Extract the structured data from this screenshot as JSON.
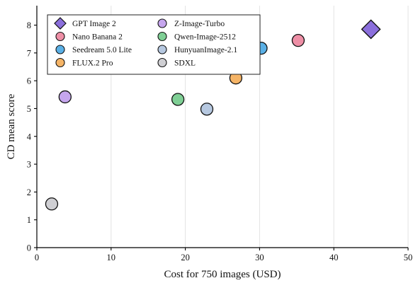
{
  "chart_data": {
    "type": "scatter",
    "title": "",
    "xlabel": "Cost for 750 images (USD)",
    "ylabel": "CD mean score",
    "xlim": [
      0,
      50
    ],
    "ylim": [
      0,
      8.7
    ],
    "xticks": [
      0,
      10,
      20,
      30,
      40,
      50
    ],
    "yticks": [
      0,
      1,
      2,
      3,
      4,
      5,
      6,
      7,
      8
    ],
    "grid": "vertical",
    "legend_position": "top-left",
    "series": [
      {
        "name": "GPT Image 2",
        "marker": "diamond",
        "color": "#8b6fdc",
        "x": 45.0,
        "y": 7.85
      },
      {
        "name": "Nano Banana 2",
        "marker": "circle",
        "color": "#ee8fa6",
        "x": 35.2,
        "y": 7.45
      },
      {
        "name": "Seedream 5.0 Lite",
        "marker": "circle",
        "color": "#5ab0e6",
        "x": 30.2,
        "y": 7.17
      },
      {
        "name": "FLUX.2 Pro",
        "marker": "circle",
        "color": "#f5b466",
        "x": 26.8,
        "y": 6.1
      },
      {
        "name": "Z-Image-Turbo",
        "marker": "circle",
        "color": "#c6a6ee",
        "x": 3.8,
        "y": 5.42
      },
      {
        "name": "Qwen-Image-2512",
        "marker": "circle",
        "color": "#7fcf95",
        "x": 19.0,
        "y": 5.33
      },
      {
        "name": "HunyuanImage-2.1",
        "marker": "circle",
        "color": "#b6c8e0",
        "x": 22.9,
        "y": 4.98
      },
      {
        "name": "SDXL",
        "marker": "circle",
        "color": "#cfcfd3",
        "x": 2.0,
        "y": 1.57
      }
    ]
  }
}
